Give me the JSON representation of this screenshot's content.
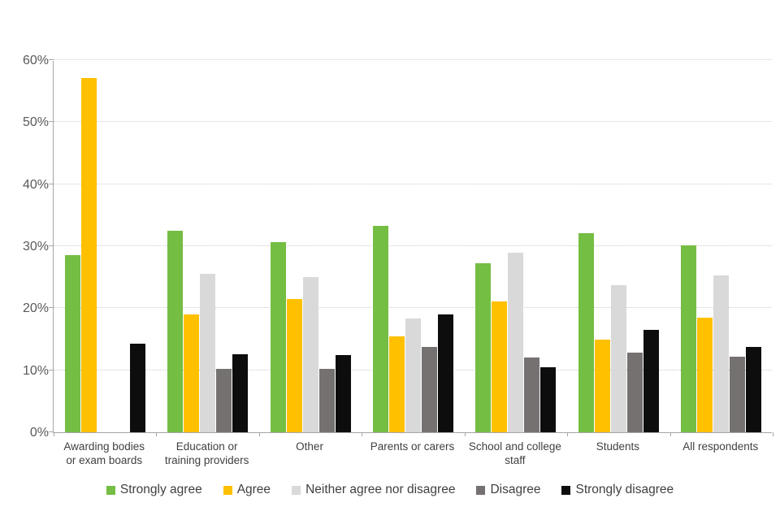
{
  "chart_data": {
    "type": "bar",
    "title": "",
    "xlabel": "",
    "ylabel": "",
    "ylim": [
      0,
      60
    ],
    "grid": "horizontal-dotted",
    "legend_position": "bottom-center",
    "ytick_labels": [
      "0%",
      "10%",
      "20%",
      "30%",
      "40%",
      "50%",
      "60%"
    ],
    "ytick_values": [
      0,
      10,
      20,
      30,
      40,
      50,
      60
    ],
    "categories": [
      {
        "label": "Awarding bodies or exam boards",
        "lines": [
          "Awarding bodies",
          "or exam boards"
        ]
      },
      {
        "label": "Education or training providers",
        "lines": [
          "Education or",
          "training providers"
        ]
      },
      {
        "label": "Other",
        "lines": [
          "Other"
        ]
      },
      {
        "label": "Parents or carers",
        "lines": [
          "Parents or carers"
        ]
      },
      {
        "label": "School and college staff",
        "lines": [
          "School and college",
          "staff"
        ]
      },
      {
        "label": "Students",
        "lines": [
          "Students"
        ]
      },
      {
        "label": "All respondents",
        "lines": [
          "All respondents"
        ]
      }
    ],
    "series": [
      {
        "name": "Strongly agree",
        "color": "#74BE43",
        "values": [
          28.6,
          32.5,
          30.6,
          33.3,
          27.3,
          32.1,
          30.1
        ]
      },
      {
        "name": "Agree",
        "color": "#FFC000",
        "values": [
          57.1,
          19.0,
          21.5,
          15.5,
          21.1,
          14.9,
          18.5
        ]
      },
      {
        "name": "Neither agree nor disagree",
        "color": "#D9D9D9",
        "values": [
          0,
          25.5,
          25.0,
          18.4,
          29.0,
          23.7,
          25.3
        ]
      },
      {
        "name": "Disagree",
        "color": "#757171",
        "values": [
          0,
          10.2,
          10.2,
          13.7,
          12.0,
          12.8,
          12.2
        ]
      },
      {
        "name": "Strongly disagree",
        "color": "#0D0D0D",
        "values": [
          14.3,
          12.6,
          12.5,
          19.0,
          10.5,
          16.5,
          13.7
        ]
      }
    ],
    "colors": {
      "axis_line": "#a6a6a6",
      "gridline": "#cdcdcd",
      "ytick_text": "#595959",
      "xlabel_text": "#404040",
      "legend_text": "#404040"
    }
  }
}
